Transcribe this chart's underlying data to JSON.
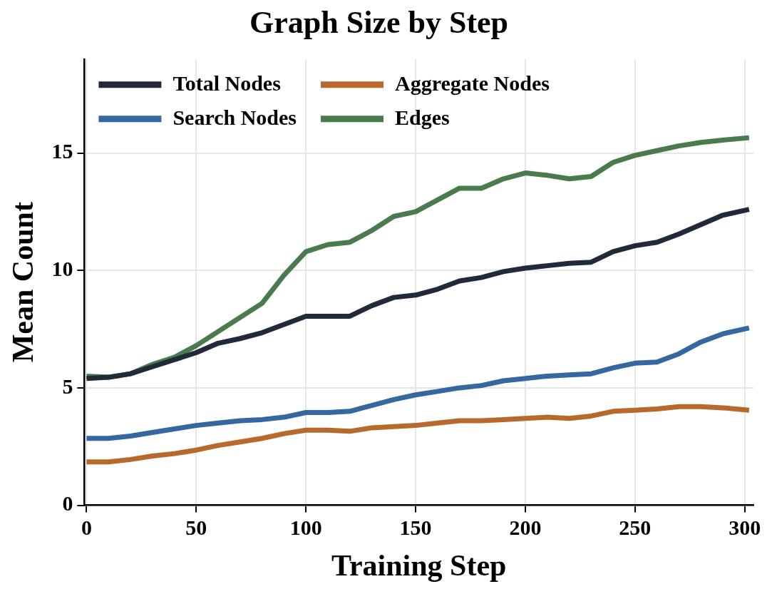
{
  "chart_data": {
    "type": "line",
    "title": "Graph Size by Step",
    "xlabel": "Training Step",
    "ylabel": "Mean Count",
    "x": [
      0,
      10,
      20,
      30,
      40,
      50,
      60,
      70,
      80,
      90,
      100,
      110,
      120,
      130,
      140,
      150,
      160,
      170,
      180,
      190,
      200,
      210,
      220,
      230,
      240,
      250,
      260,
      270,
      280,
      290,
      302
    ],
    "series": [
      {
        "name": "Total Nodes",
        "color": "#212a3b",
        "values": [
          5.4,
          5.45,
          5.6,
          5.9,
          6.2,
          6.5,
          6.9,
          7.1,
          7.35,
          7.7,
          8.05,
          8.05,
          8.05,
          8.5,
          8.85,
          8.95,
          9.2,
          9.55,
          9.7,
          9.95,
          10.1,
          10.2,
          10.3,
          10.35,
          10.8,
          11.05,
          11.2,
          11.55,
          11.95,
          12.35,
          12.6
        ]
      },
      {
        "name": "Search Nodes",
        "color": "#3567a0",
        "values": [
          2.85,
          2.85,
          2.95,
          3.1,
          3.25,
          3.4,
          3.5,
          3.6,
          3.65,
          3.75,
          3.95,
          3.95,
          4.0,
          4.25,
          4.5,
          4.7,
          4.85,
          5.0,
          5.1,
          5.3,
          5.4,
          5.5,
          5.55,
          5.6,
          5.85,
          6.05,
          6.1,
          6.45,
          6.95,
          7.3,
          7.55
        ]
      },
      {
        "name": "Aggregate Nodes",
        "color": "#b8692c",
        "values": [
          1.85,
          1.85,
          1.95,
          2.1,
          2.2,
          2.35,
          2.55,
          2.7,
          2.85,
          3.05,
          3.2,
          3.2,
          3.15,
          3.3,
          3.35,
          3.4,
          3.5,
          3.6,
          3.6,
          3.65,
          3.7,
          3.75,
          3.7,
          3.8,
          4.0,
          4.05,
          4.1,
          4.2,
          4.2,
          4.15,
          4.05
        ]
      },
      {
        "name": "Edges",
        "color": "#4a7b4e",
        "values": [
          5.5,
          5.45,
          5.6,
          6.0,
          6.3,
          6.8,
          7.4,
          8.0,
          8.6,
          9.8,
          10.8,
          11.1,
          11.2,
          11.7,
          12.3,
          12.5,
          13.0,
          13.5,
          13.5,
          13.9,
          14.15,
          14.05,
          13.9,
          14.0,
          14.6,
          14.9,
          15.1,
          15.3,
          15.45,
          15.55,
          15.65
        ]
      }
    ],
    "xlim": [
      -1,
      304
    ],
    "ylim": [
      0,
      19
    ],
    "xticks": [
      0,
      50,
      100,
      150,
      200,
      250,
      300
    ],
    "yticks": [
      0,
      5,
      10,
      15
    ],
    "grid": true,
    "legend": "top left",
    "marker": "none",
    "line_style": "solid"
  }
}
